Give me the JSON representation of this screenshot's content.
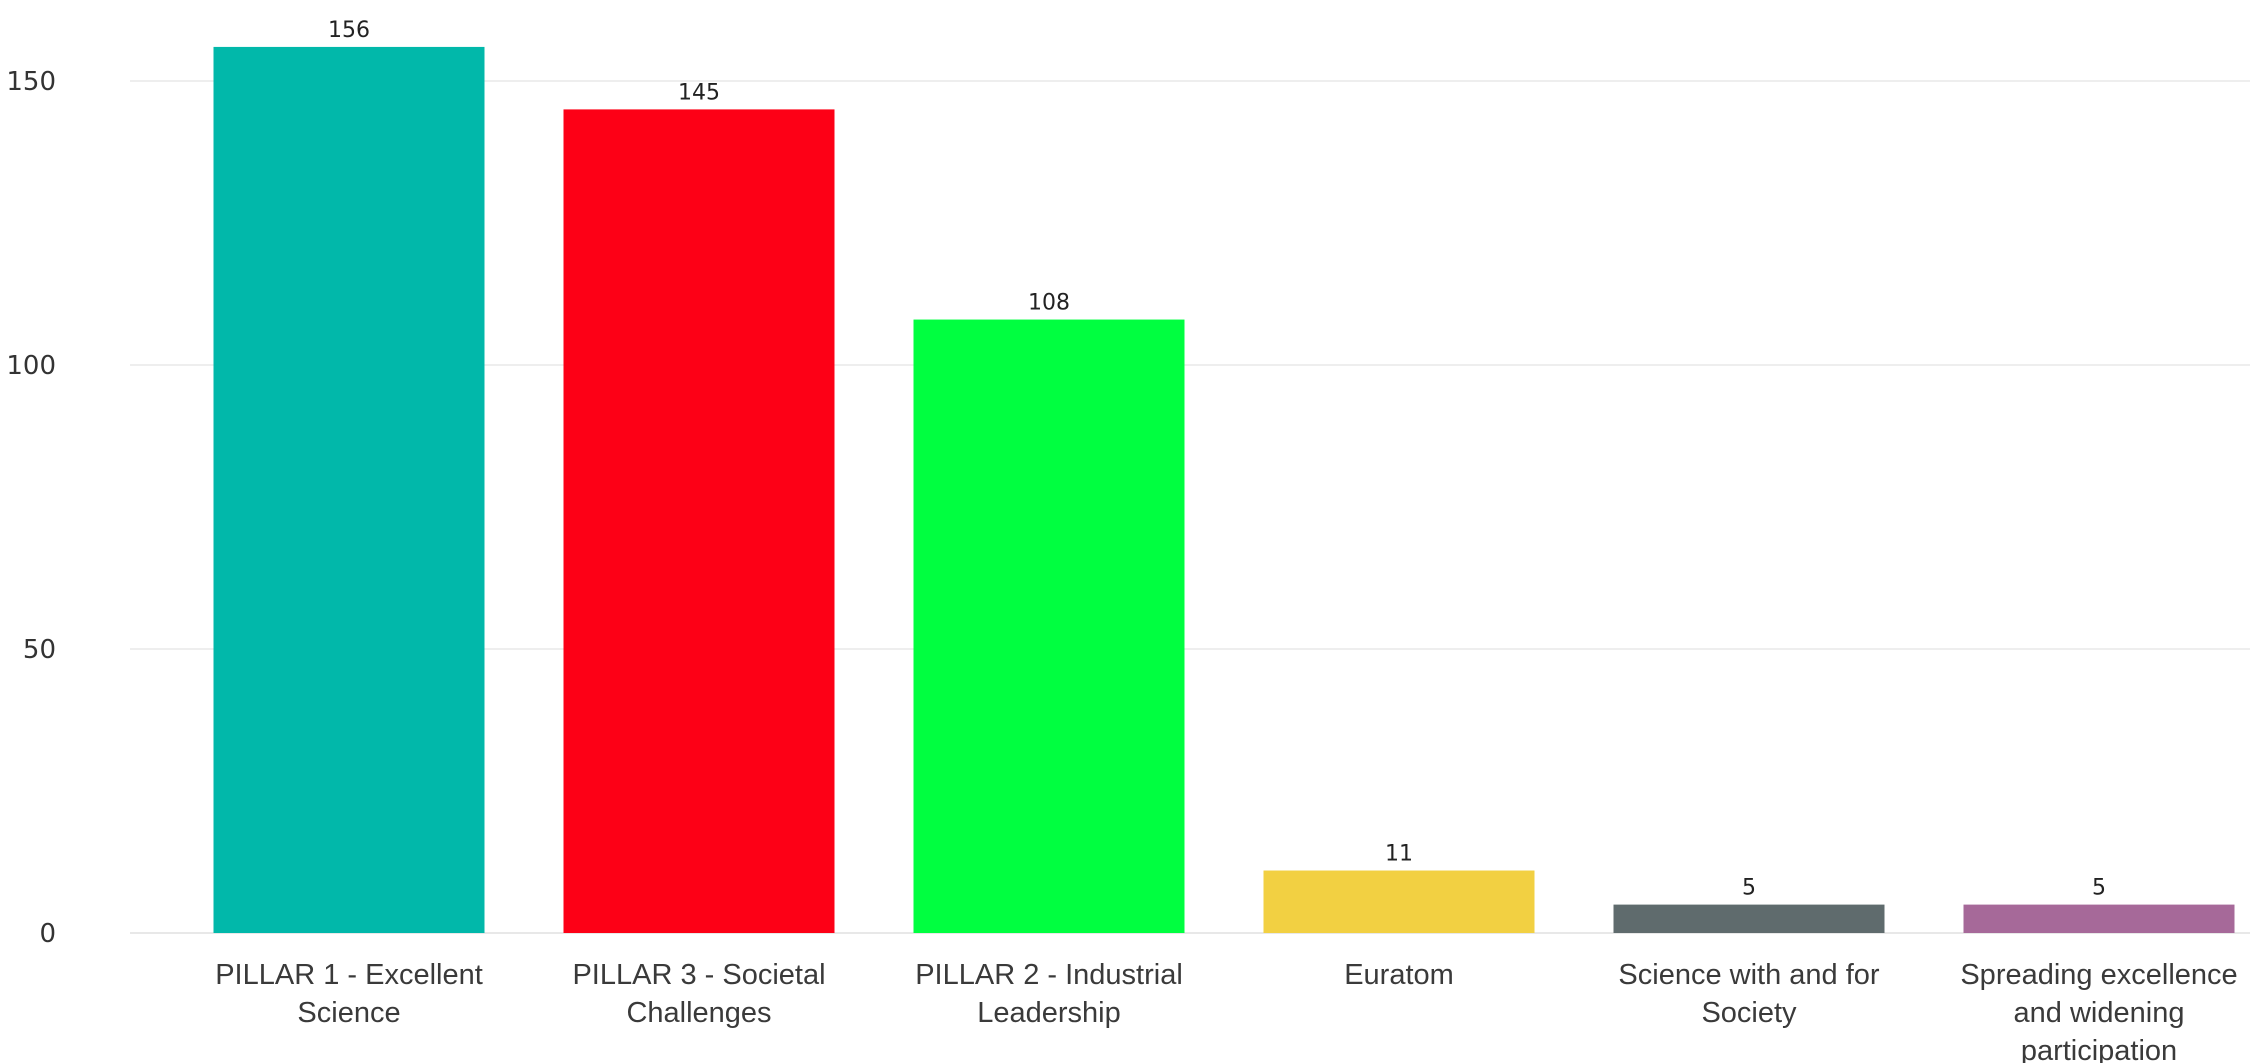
{
  "chart_data": {
    "type": "bar",
    "categories": [
      [
        "PILLAR 1 - Excellent",
        "Science"
      ],
      [
        "PILLAR 3 - Societal",
        "Challenges"
      ],
      [
        "PILLAR 2 - Industrial",
        "Leadership"
      ],
      [
        "Euratom"
      ],
      [
        "Science with and for",
        "Society"
      ],
      [
        "Spreading excellence",
        "and widening",
        "participation"
      ]
    ],
    "values": [
      156,
      145,
      108,
      11,
      5,
      5
    ],
    "data_labels": [
      "156",
      "145",
      "108",
      "11",
      "5",
      "5"
    ],
    "colors": [
      "#01b8aa",
      "#fd0016",
      "#00ff40",
      "#f2d042",
      "#5f6b6d",
      "#a66999"
    ],
    "y_ticks": [
      0,
      50,
      100,
      150
    ],
    "ylim": [
      0,
      165
    ],
    "grid": true,
    "title": "",
    "xlabel": "",
    "ylabel": ""
  }
}
